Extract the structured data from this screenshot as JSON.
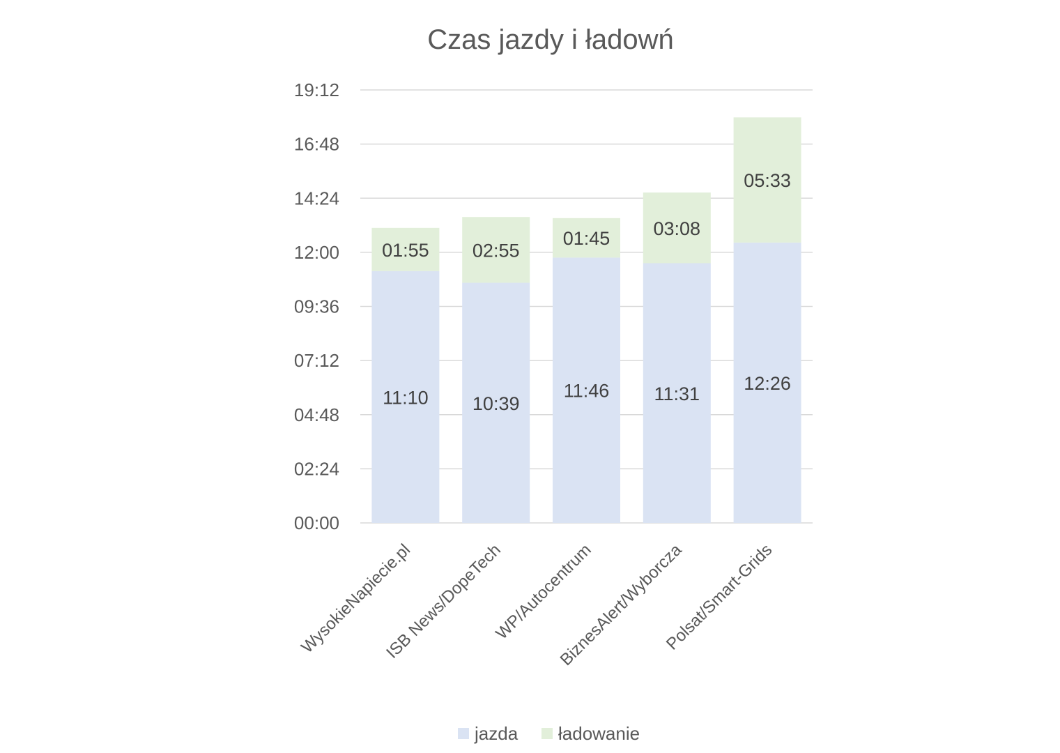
{
  "chart_data": {
    "type": "bar",
    "stacked": true,
    "title": "Czas jazdy i ładowń",
    "categories": [
      "WysokieNapiecie.pl",
      "ISB News/DopeTech",
      "WP/Autocentrum",
      "BiznesAlert/Wyborcza",
      "Polsat/Smart-Grids"
    ],
    "series": [
      {
        "name": "jazda",
        "color": "#dae3f3",
        "values": [
          "11:10",
          "10:39",
          "11:46",
          "11:31",
          "12:26"
        ]
      },
      {
        "name": "ładowanie",
        "color": "#e2efda",
        "values": [
          "01:55",
          "02:55",
          "01:45",
          "03:08",
          "05:33"
        ]
      }
    ],
    "y_ticks": [
      "00:00",
      "02:24",
      "04:48",
      "07:12",
      "09:36",
      "12:00",
      "14:24",
      "16:48",
      "19:12"
    ],
    "ylim": [
      "00:00",
      "19:12"
    ],
    "grid": true,
    "legend_position": "bottom",
    "colors": {
      "gridline": "#d9d9d9",
      "text": "#595959",
      "label": "#404040"
    }
  }
}
